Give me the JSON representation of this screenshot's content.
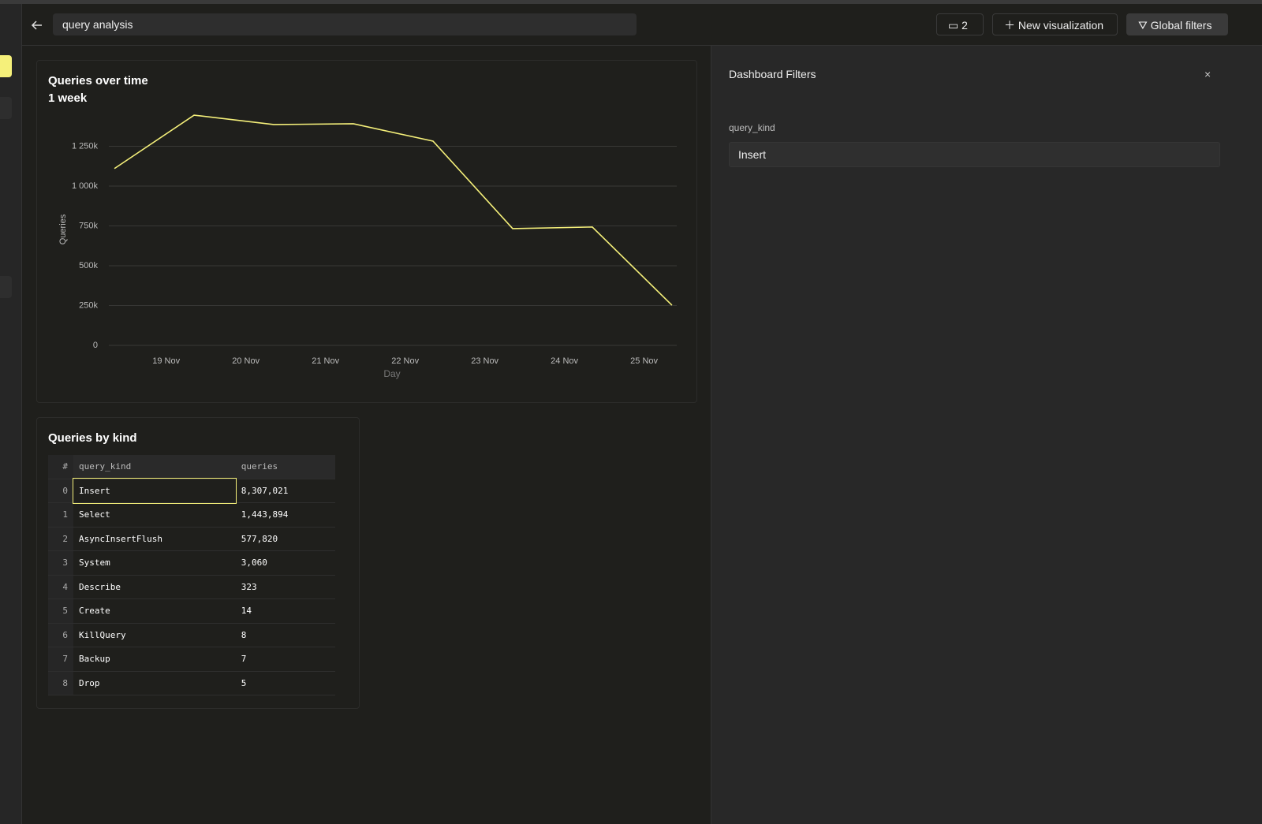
{
  "header": {
    "title": "query analysis",
    "count": "2",
    "new_button": "New visualization",
    "filters_button": "Global filters"
  },
  "chart_data": {
    "type": "line",
    "title": "Queries over time",
    "subtitle": "1 week",
    "x_label": "Day",
    "y_label": "Queries",
    "x": [
      18.35,
      19.35,
      20.35,
      21.35,
      22.35,
      23.35,
      24.35,
      25.35
    ],
    "series": [
      {
        "name": "Queries",
        "color": "#f5f07a",
        "values": [
          1110000,
          1445000,
          1386000,
          1391000,
          1282000,
          733000,
          743000,
          252000
        ]
      }
    ],
    "xlim": [
      18.28,
      25.41
    ],
    "xticks": [
      {
        "value": 19,
        "label": "19 Nov"
      },
      {
        "value": 20,
        "label": "20 Nov"
      },
      {
        "value": 21,
        "label": "21 Nov"
      },
      {
        "value": 22,
        "label": "22 Nov"
      },
      {
        "value": 23,
        "label": "23 Nov"
      },
      {
        "value": 24,
        "label": "24 Nov"
      },
      {
        "value": 25,
        "label": "25 Nov"
      }
    ],
    "ylim": [
      0,
      1470000
    ],
    "yticks": [
      0,
      {
        "value": 250000,
        "label": "250k"
      },
      {
        "value": 500000,
        "label": "500k"
      },
      {
        "value": 750000,
        "label": "750k"
      },
      {
        "value": 1000000,
        "label": "1 000k"
      },
      {
        "value": 1250000,
        "label": "1 250k"
      }
    ],
    "grid": true
  },
  "table": {
    "title": "Queries by kind",
    "columns": [
      "#",
      "query_kind",
      "queries"
    ],
    "rows": [
      [
        "0",
        "Insert",
        "8,307,021"
      ],
      [
        "1",
        "Select",
        "1,443,894"
      ],
      [
        "2",
        "AsyncInsertFlush",
        "577,820"
      ],
      [
        "3",
        "System",
        "3,060"
      ],
      [
        "4",
        "Describe",
        "323"
      ],
      [
        "5",
        "Create",
        "14"
      ],
      [
        "6",
        "KillQuery",
        "8"
      ],
      [
        "7",
        "Backup",
        "7"
      ],
      [
        "8",
        "Drop",
        "5"
      ]
    ]
  },
  "filters": {
    "title": "Dashboard Filters",
    "field": "query_kind",
    "value": "Insert"
  }
}
